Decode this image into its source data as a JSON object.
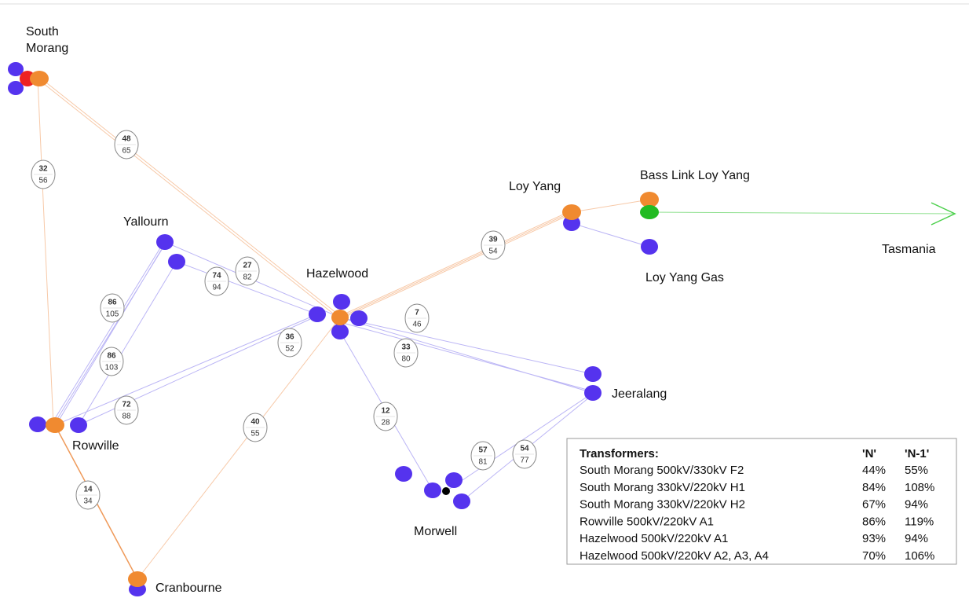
{
  "nodes": [
    {
      "label": "South Morang"
    },
    {
      "label": "Yallourn"
    },
    {
      "label": "Hazelwood"
    },
    {
      "label": "Loy Yang"
    },
    {
      "label": "Bass Link Loy Yang"
    },
    {
      "label": "Loy Yang Gas"
    },
    {
      "label": "Tasmania"
    },
    {
      "label": "Jeeralang"
    },
    {
      "label": "Rowville"
    },
    {
      "label": "Morwell"
    },
    {
      "label": "Cranbourne"
    }
  ],
  "links": [
    {
      "top": 48,
      "bottom": 65
    },
    {
      "top": 32,
      "bottom": 56
    },
    {
      "top": 86,
      "bottom": 105
    },
    {
      "top": 86,
      "bottom": 103
    },
    {
      "top": 72,
      "bottom": 88
    },
    {
      "top": 74,
      "bottom": 94
    },
    {
      "top": 27,
      "bottom": 82
    },
    {
      "top": 36,
      "bottom": 52
    },
    {
      "top": 40,
      "bottom": 55
    },
    {
      "top": 14,
      "bottom": 34
    },
    {
      "top": 39,
      "bottom": 54
    },
    {
      "top": 7,
      "bottom": 46
    },
    {
      "top": 33,
      "bottom": 80
    },
    {
      "top": 12,
      "bottom": 28
    },
    {
      "top": 57,
      "bottom": 81
    },
    {
      "top": 54,
      "bottom": 77
    }
  ],
  "table": {
    "title": "Transformers:",
    "headers": [
      "'N'",
      "'N-1'"
    ],
    "rows": [
      [
        "South Morang 500kV/330kV F2",
        "44%",
        "55%"
      ],
      [
        "South Morang 330kV/220kV H1",
        "84%",
        "108%"
      ],
      [
        "South Morang 330kV/220kV H2",
        "67%",
        "94%"
      ],
      [
        "Rowville 500kV/220kV A1",
        "86%",
        "119%"
      ],
      [
        "Hazelwood 500kV/220kV A1",
        "93%",
        "94%"
      ],
      [
        "Hazelwood 500kV/220kV A2, A3, A4",
        "70%",
        "106%"
      ]
    ]
  }
}
